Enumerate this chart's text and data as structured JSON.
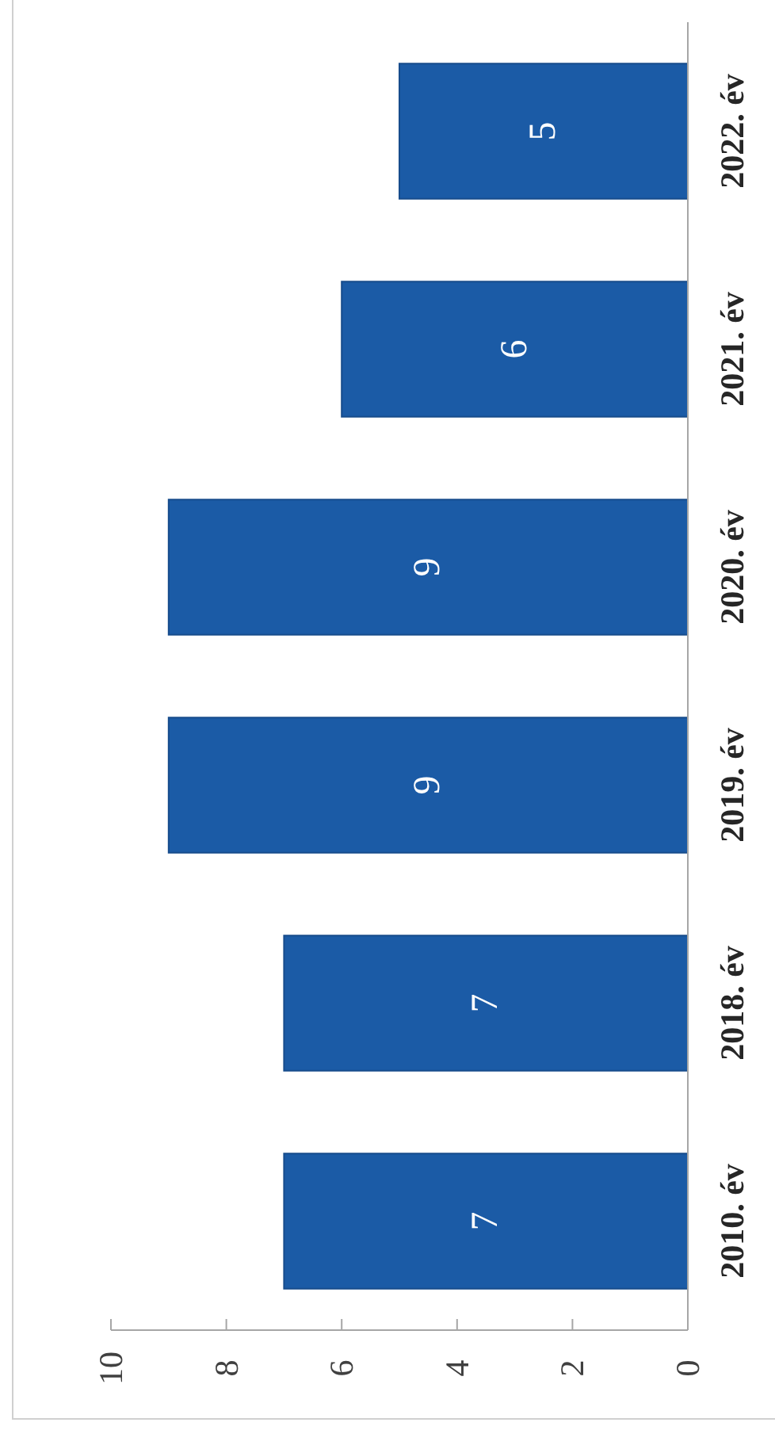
{
  "chart_data": {
    "type": "bar",
    "orientation": "horizontal",
    "categories": [
      "2022. év",
      "2021. év",
      "2020. év",
      "2019. év",
      "2018. év",
      "2010. év"
    ],
    "values": [
      5,
      6,
      9,
      9,
      7,
      7
    ],
    "color": "#1b5ba6",
    "xlim": [
      10,
      0
    ],
    "xticks": [
      0,
      2,
      4,
      6,
      8,
      10
    ],
    "data_labels": true
  }
}
